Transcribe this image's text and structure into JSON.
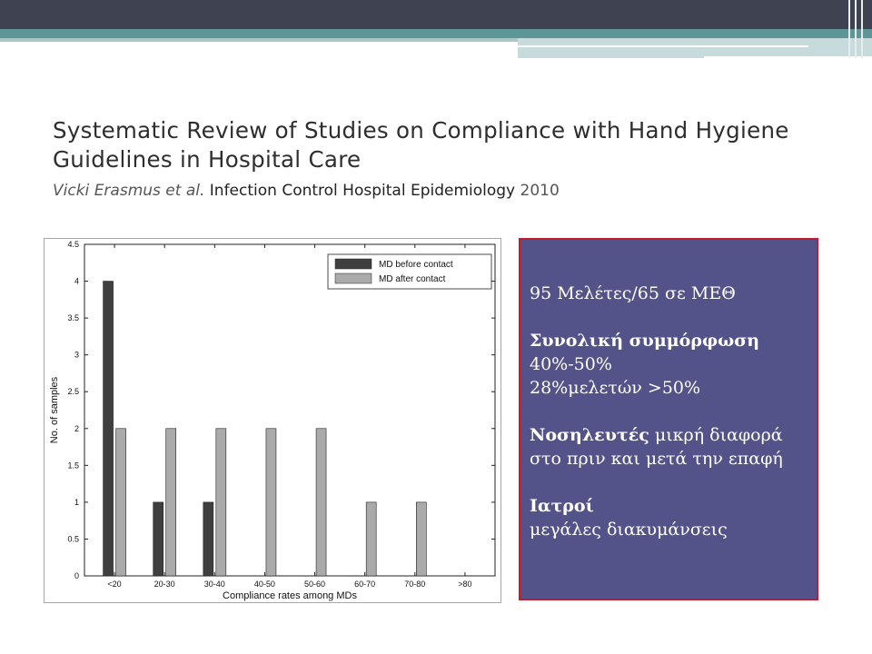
{
  "slide": {
    "title": "Systematic Review of Studies on Compliance with Hand Hygiene Guidelines in Hospital Care",
    "author_first": "Vicki",
    "author_last": "Erasmus et al.",
    "journal": "Infection Control Hospital Epidemiology",
    "year": "2010"
  },
  "info": {
    "line1": "95 Μελέτες/65 σε ΜΕΘ",
    "overall_heading": "Συνολική συμμόρφωση",
    "overall_range": "40%-50%",
    "overall_share": "28%μελετών >50%",
    "nurses_heading": "Νοσηλευτές",
    "nurses_text": "μικρή διαφορά στο πριν και μετά την επαφή",
    "doctors_heading": "Ιατροί",
    "doctors_text": "μεγάλες διακυμάνσεις"
  },
  "colors": {
    "before": "#3f3f3f",
    "after": "#aaaaaa",
    "infobox_bg": "#535389",
    "infobox_border": "#c21c2a",
    "header_dark": "#3f4351",
    "header_teal": "#5e9698"
  },
  "chart_data": {
    "type": "bar",
    "categories": [
      "<20",
      "20-30",
      "30-40",
      "40-50",
      "50-60",
      "60-70",
      "70-80",
      ">80"
    ],
    "series": [
      {
        "name": "MD before contact",
        "values": [
          4,
          1,
          1,
          0,
          0,
          0,
          0,
          0
        ]
      },
      {
        "name": "MD after contact",
        "values": [
          2,
          2,
          2,
          2,
          2,
          1,
          1,
          0
        ]
      }
    ],
    "xlabel": "Compliance rates among MDs",
    "ylabel": "No. of samples",
    "ylim": [
      0,
      4.5
    ],
    "yticks": [
      "0",
      "0.5",
      "1",
      "1.5",
      "2",
      "2.5",
      "3",
      "3.5",
      "4",
      "4.5"
    ],
    "legend_position": "top-right",
    "grid": false
  }
}
